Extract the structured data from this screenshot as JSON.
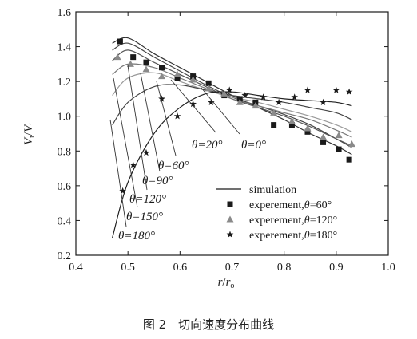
{
  "caption": "图 2　切向速度分布曲线",
  "chart_data": {
    "type": "line",
    "title": "",
    "xlabel_main": "r",
    "xlabel_sep": "/",
    "xlabel_denom": "r",
    "xlabel_sub": "o",
    "ylabel_num": "V",
    "ylabel_num_sub": "t",
    "ylabel_sep": "/",
    "ylabel_den": "V",
    "ylabel_den_sub": "i",
    "xlim": [
      0.4,
      1.0
    ],
    "ylim": [
      0.2,
      1.6
    ],
    "xticks": [
      "0.4",
      "0.5",
      "0.6",
      "0.7",
      "0.8",
      "0.9",
      "1.0"
    ],
    "yticks": [
      "0.2",
      "0.4",
      "0.6",
      "0.8",
      "1.0",
      "1.2",
      "1.4",
      "1.6"
    ],
    "grid": false,
    "legend_position": "bottom-right",
    "legend": [
      {
        "marker": "line",
        "label_plain": "simulation",
        "label_prefix": "",
        "label_theta": "",
        "label_suffix": ""
      },
      {
        "marker": "square",
        "label_plain": "",
        "label_prefix": "experement,",
        "label_theta": "θ",
        "label_suffix": "=60°"
      },
      {
        "marker": "triangle",
        "label_plain": "",
        "label_prefix": "experement,",
        "label_theta": "θ",
        "label_suffix": "=120°"
      },
      {
        "marker": "star",
        "label_plain": "",
        "label_prefix": "experement,",
        "label_theta": "θ",
        "label_suffix": "=180°"
      }
    ],
    "simulation_series": [
      {
        "name": "θ=0°",
        "color": "#333333",
        "x": [
          0.47,
          0.5,
          0.55,
          0.6,
          0.65,
          0.7,
          0.75,
          0.8,
          0.85,
          0.9,
          0.93
        ],
        "y": [
          1.42,
          1.45,
          1.36,
          1.28,
          1.2,
          1.12,
          1.05,
          0.98,
          0.9,
          0.83,
          0.78
        ]
      },
      {
        "name": "θ=20°",
        "color": "#444444",
        "x": [
          0.47,
          0.5,
          0.55,
          0.6,
          0.65,
          0.7,
          0.75,
          0.8,
          0.85,
          0.9,
          0.93
        ],
        "y": [
          1.38,
          1.42,
          1.34,
          1.26,
          1.18,
          1.11,
          1.06,
          1.01,
          0.95,
          0.87,
          0.82
        ]
      },
      {
        "name": "θ=60°",
        "color": "#555555",
        "x": [
          0.47,
          0.5,
          0.55,
          0.6,
          0.65,
          0.7,
          0.75,
          0.8,
          0.85,
          0.9,
          0.93
        ],
        "y": [
          1.32,
          1.38,
          1.31,
          1.24,
          1.17,
          1.1,
          1.05,
          1.0,
          0.94,
          0.87,
          0.83
        ]
      },
      {
        "name": "θ=90°",
        "color": "#777777",
        "x": [
          0.47,
          0.5,
          0.55,
          0.6,
          0.65,
          0.7,
          0.75,
          0.8,
          0.85,
          0.9,
          0.93
        ],
        "y": [
          1.24,
          1.3,
          1.28,
          1.22,
          1.16,
          1.1,
          1.06,
          1.02,
          0.98,
          0.92,
          0.88
        ]
      },
      {
        "name": "θ=120°",
        "color": "#999999",
        "x": [
          0.47,
          0.5,
          0.55,
          0.6,
          0.65,
          0.7,
          0.75,
          0.8,
          0.85,
          0.9,
          0.93
        ],
        "y": [
          1.12,
          1.22,
          1.25,
          1.2,
          1.15,
          1.11,
          1.08,
          1.04,
          1.0,
          0.95,
          0.91
        ]
      },
      {
        "name": "θ=150°",
        "color": "#444444",
        "x": [
          0.47,
          0.5,
          0.55,
          0.6,
          0.65,
          0.7,
          0.75,
          0.8,
          0.85,
          0.9,
          0.93
        ],
        "y": [
          0.95,
          1.08,
          1.17,
          1.18,
          1.15,
          1.12,
          1.1,
          1.08,
          1.05,
          1.02,
          0.98
        ]
      },
      {
        "name": "θ=180°",
        "color": "#222222",
        "x": [
          0.47,
          0.5,
          0.55,
          0.6,
          0.65,
          0.7,
          0.75,
          0.8,
          0.85,
          0.9,
          0.93
        ],
        "y": [
          0.3,
          0.62,
          0.9,
          1.05,
          1.13,
          1.14,
          1.12,
          1.1,
          1.09,
          1.08,
          1.06
        ]
      }
    ],
    "experiment_series": [
      {
        "name": "experement, θ=60°",
        "marker": "square",
        "x": [
          0.485,
          0.51,
          0.535,
          0.565,
          0.595,
          0.625,
          0.655,
          0.685,
          0.715,
          0.745,
          0.78,
          0.815,
          0.845,
          0.875,
          0.905,
          0.925
        ],
        "y": [
          1.43,
          1.34,
          1.31,
          1.28,
          1.22,
          1.23,
          1.19,
          1.12,
          1.1,
          1.08,
          0.95,
          0.95,
          0.91,
          0.85,
          0.81,
          0.75
        ]
      },
      {
        "name": "experement, θ=120°",
        "marker": "triangle",
        "x": [
          0.48,
          0.505,
          0.535,
          0.565,
          0.595,
          0.625,
          0.655,
          0.685,
          0.715,
          0.745,
          0.78,
          0.815,
          0.845,
          0.875,
          0.905,
          0.93
        ],
        "y": [
          1.34,
          1.3,
          1.27,
          1.23,
          1.24,
          1.21,
          1.16,
          1.13,
          1.08,
          1.06,
          1.02,
          0.97,
          0.93,
          0.88,
          0.89,
          0.84
        ]
      },
      {
        "name": "experement, θ=180°",
        "marker": "star",
        "x": [
          0.49,
          0.51,
          0.535,
          0.565,
          0.595,
          0.625,
          0.66,
          0.695,
          0.725,
          0.76,
          0.79,
          0.82,
          0.845,
          0.875,
          0.9,
          0.925
        ],
        "y": [
          0.57,
          0.72,
          0.79,
          1.1,
          1.0,
          1.07,
          1.08,
          1.15,
          1.12,
          1.11,
          1.08,
          1.11,
          1.15,
          1.08,
          1.15,
          1.14
        ]
      }
    ],
    "curve_annotations": [
      "θ=20°",
      "θ=0°",
      "θ=60°",
      "θ=90°",
      "θ=120°",
      "θ=150°",
      "θ=180°"
    ]
  }
}
